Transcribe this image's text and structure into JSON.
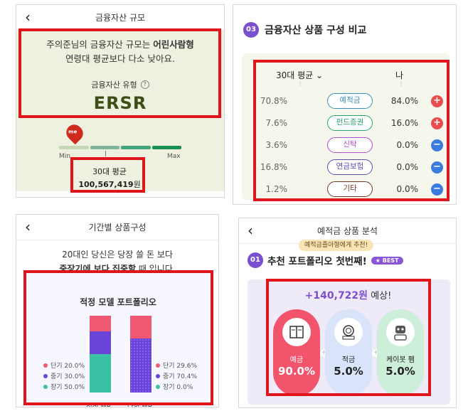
{
  "panel1": {
    "header_title": "금융자산 규모",
    "message_line1_prefix": "주의준님의 금융자산 규모는 ",
    "message_line1_bold": "어린사람형",
    "message_line2": "연령대 평균보다 다소 낮아요.",
    "type_label": "금융자산 유형",
    "type_value": "ERSR",
    "pin_label": "me",
    "min_label": "Min",
    "max_label": "Max",
    "avg_label": "30대 평균",
    "avg_value": "100,567,419",
    "avg_unit": "원",
    "bar_colors": [
      "#c7d7b4",
      "#7fb59b",
      "#3ea47a",
      "#1a8f52"
    ]
  },
  "panel2": {
    "badge": "03",
    "title": "금융자산 상품 구성 비교",
    "left_header": "30대 평균",
    "right_header": "나",
    "rows": [
      {
        "left": "70.8%",
        "label": "예적금",
        "right": "84.0%",
        "action": "+",
        "pill_color": "#3c8fb0",
        "action_color": "#ea4b4b"
      },
      {
        "left": "7.6%",
        "label": "펀드증권",
        "right": "16.0%",
        "action": "+",
        "pill_color": "#2aa36a",
        "action_color": "#ea4b4b"
      },
      {
        "left": "3.6%",
        "label": "신탁",
        "right": "0.0%",
        "action": "−",
        "pill_color": "#b14fcd",
        "action_color": "#3b7be0"
      },
      {
        "left": "16.8%",
        "label": "연금보험",
        "right": "0.0%",
        "action": "−",
        "pill_color": "#5d4bb0",
        "action_color": "#3b7be0"
      },
      {
        "left": "1.2%",
        "label": "기타",
        "right": "0.0%",
        "action": "−",
        "pill_color": "#6c3a24",
        "action_color": "#3b7be0"
      }
    ]
  },
  "panel3": {
    "header_title": "기간별 상품구성",
    "intro_line1": "20대인 당신은 당장 쓸 돈 보다",
    "intro_line2_bold": "중장기에 보다 집중할",
    "intro_line2_rest": " 때 입니다.",
    "chart_title": "적정 모델 포트폴리오",
    "colors": {
      "short": "#ef5a72",
      "mid": "#6a44d8",
      "long": "#39c1a3"
    },
    "chart_data": {
      "type": "bar",
      "categories": [
        "적정 MP",
        "나의 MP"
      ],
      "series": [
        {
          "name": "단기",
          "values": [
            20.0,
            29.6
          ]
        },
        {
          "name": "중기",
          "values": [
            30.0,
            70.4
          ]
        },
        {
          "name": "장기",
          "values": [
            50.0,
            0.0
          ]
        }
      ],
      "legend_left": [
        {
          "label": "단기 20.0%"
        },
        {
          "label": "중기 30.0%"
        },
        {
          "label": "장기 50.0%"
        }
      ],
      "legend_right": [
        {
          "label": "단기 29.6%"
        },
        {
          "label": "중기 70.4%"
        },
        {
          "label": "장기 0.0%"
        }
      ],
      "ylim": [
        0,
        100
      ]
    }
  },
  "panel4": {
    "header_title": "예적금 상품 분석",
    "tip": "예적금졸아형에게 추천!",
    "badge": "01",
    "title": "추천 포트폴리오 첫번째!",
    "best": "★ BEST",
    "expect_amount": "+140,722원",
    "expect_suffix": " 예상!",
    "items": [
      {
        "name": "예금",
        "percent": "90.0%",
        "icon": "bankbook-icon",
        "bg": "#f2546c",
        "fg": "#ffffff"
      },
      {
        "name": "적금",
        "percent": "5.0%",
        "icon": "coin-icon",
        "bg": "#d9e4fb",
        "fg": "#222222"
      },
      {
        "name": "케이봇 펨",
        "percent": "5.0%",
        "icon": "robot-icon",
        "bg": "#cdeed8",
        "fg": "#222222"
      }
    ]
  }
}
